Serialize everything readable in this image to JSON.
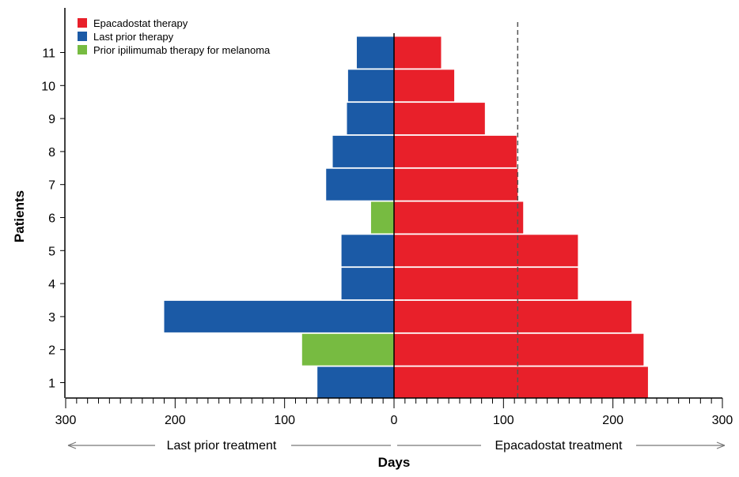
{
  "chart_data": {
    "type": "bar",
    "orientation": "horizontal",
    "xlabel": "Days",
    "ylabel": "Patients",
    "xlim": [
      -300,
      300
    ],
    "x_tick_values": [
      -300,
      -200,
      -100,
      0,
      100,
      200,
      300
    ],
    "x_tick_labels": [
      "300",
      "200",
      "100",
      "0",
      "100",
      "200",
      "300"
    ],
    "categories": [
      "1",
      "2",
      "3",
      "4",
      "5",
      "6",
      "7",
      "8",
      "9",
      "10",
      "11"
    ],
    "series": [
      {
        "name": "Epacadostat therapy",
        "color": "#e8202a",
        "values": [
          232,
          228,
          217,
          168,
          168,
          118,
          113,
          112,
          83,
          55,
          43
        ]
      },
      {
        "name": "Last prior therapy",
        "color": "#1b5aa6",
        "values": [
          70,
          0,
          210,
          48,
          48,
          0,
          62,
          56,
          43,
          42,
          34
        ]
      },
      {
        "name": "Prior ipilimumab therapy for melanoma",
        "color": "#77bb41",
        "values": [
          0,
          84,
          0,
          0,
          0,
          21,
          0,
          0,
          0,
          0,
          0
        ]
      }
    ],
    "reference_line": {
      "x": 113,
      "style": "dashed"
    },
    "legend_position": "top-left",
    "left_arrow_label": "Last prior treatment",
    "right_arrow_label": "Epacadostat treatment",
    "grid": false
  }
}
